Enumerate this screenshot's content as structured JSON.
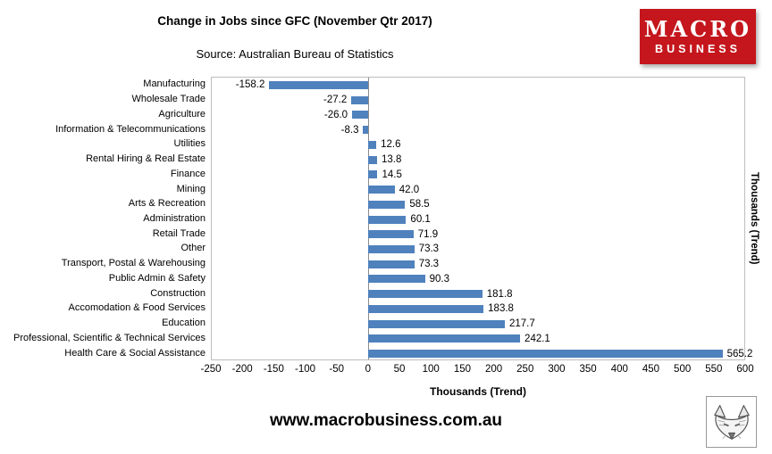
{
  "header": {
    "title": "Change in Jobs since GFC (November Qtr 2017)",
    "source": "Source: Australian Bureau of Statistics",
    "logo": {
      "line1": "MACRO",
      "line2": "BUSINESS",
      "bg_color": "#c4161c"
    }
  },
  "chart_data": {
    "type": "bar",
    "orientation": "horizontal",
    "title": "Change in Jobs since GFC (November Qtr 2017)",
    "subtitle": "Source: Australian Bureau of Statistics",
    "categories": [
      "Manufacturing",
      "Wholesale Trade",
      "Agriculture",
      "Information & Telecommunications",
      "Utilities",
      "Rental Hiring & Real Estate",
      "Finance",
      "Mining",
      "Arts & Recreation",
      "Administration",
      "Retail Trade",
      "Other",
      "Transport, Postal & Warehousing",
      "Public Admin & Safety",
      "Construction",
      "Accomodation & Food Services",
      "Education",
      "Professional, Scientific & Technical Services",
      "Health Care & Social Assistance"
    ],
    "values": [
      -158.2,
      -27.2,
      -26.0,
      -8.3,
      12.6,
      13.8,
      14.5,
      42.0,
      58.5,
      60.1,
      71.9,
      73.3,
      73.3,
      90.3,
      181.8,
      183.8,
      217.7,
      242.1,
      565.2
    ],
    "value_labels": [
      "-158.2",
      "-27.2",
      "-26.0",
      "-8.3",
      "12.6",
      "13.8",
      "14.5",
      "42.0",
      "58.5",
      "60.1",
      "71.9",
      "73.3",
      "73.3",
      "90.3",
      "181.8",
      "183.8",
      "217.7",
      "242.1",
      "565.2"
    ],
    "xlabel": "Thousands (Trend)",
    "ylabel_right": "Thousands (Trend)",
    "xlim": [
      -250,
      600
    ],
    "xticks": [
      -250,
      -200,
      -150,
      -100,
      -50,
      0,
      50,
      100,
      150,
      200,
      250,
      300,
      350,
      400,
      450,
      500,
      550,
      600
    ],
    "bar_color": "#4f81bd",
    "grid": false,
    "legend": "none"
  },
  "footer": {
    "url": "www.macrobusiness.com.au"
  }
}
